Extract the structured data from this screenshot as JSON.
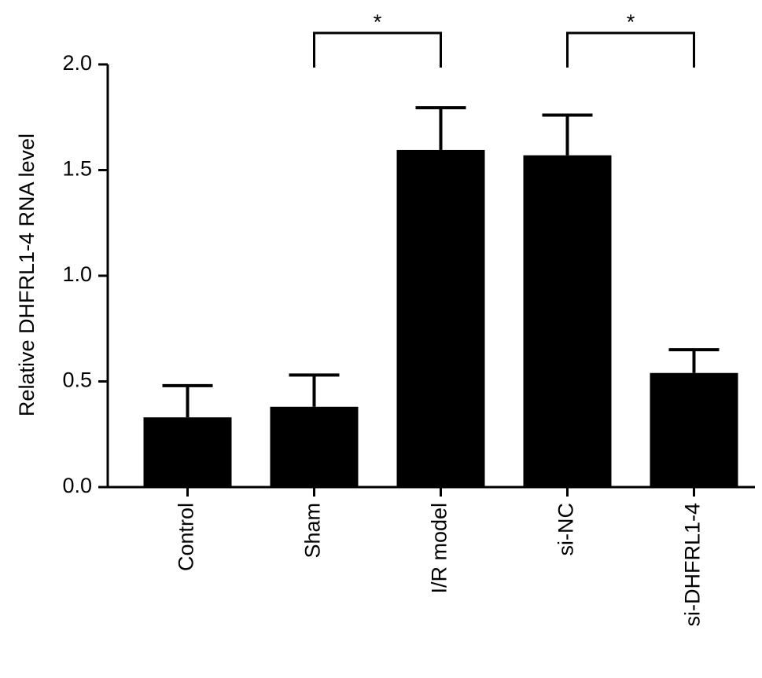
{
  "chart_data": {
    "type": "bar",
    "y_label": "Relative DHFRL1-4 RNA level",
    "categories": [
      "Control",
      "Sham",
      "I/R model",
      "si-NC",
      "si-DHFRL1-4"
    ],
    "values": [
      0.33,
      0.38,
      1.595,
      1.57,
      0.54
    ],
    "errors": [
      0.15,
      0.15,
      0.2,
      0.19,
      0.11
    ],
    "color": "#000000",
    "ylim": [
      0,
      2.0
    ],
    "yticks": [
      {
        "value": 0,
        "label": "0.0"
      },
      {
        "value": 0.5,
        "label": "0.5"
      },
      {
        "value": 1.0,
        "label": "1.0"
      },
      {
        "value": 1.5,
        "label": "1.5"
      },
      {
        "value": 2.0,
        "label": "2.0"
      }
    ],
    "comparisons": [
      {
        "label": "*",
        "between": [
          "Sham",
          "I/R model"
        ]
      },
      {
        "label": "*",
        "between": [
          "si-NC",
          "si-DHFRL1-4"
        ]
      }
    ]
  }
}
